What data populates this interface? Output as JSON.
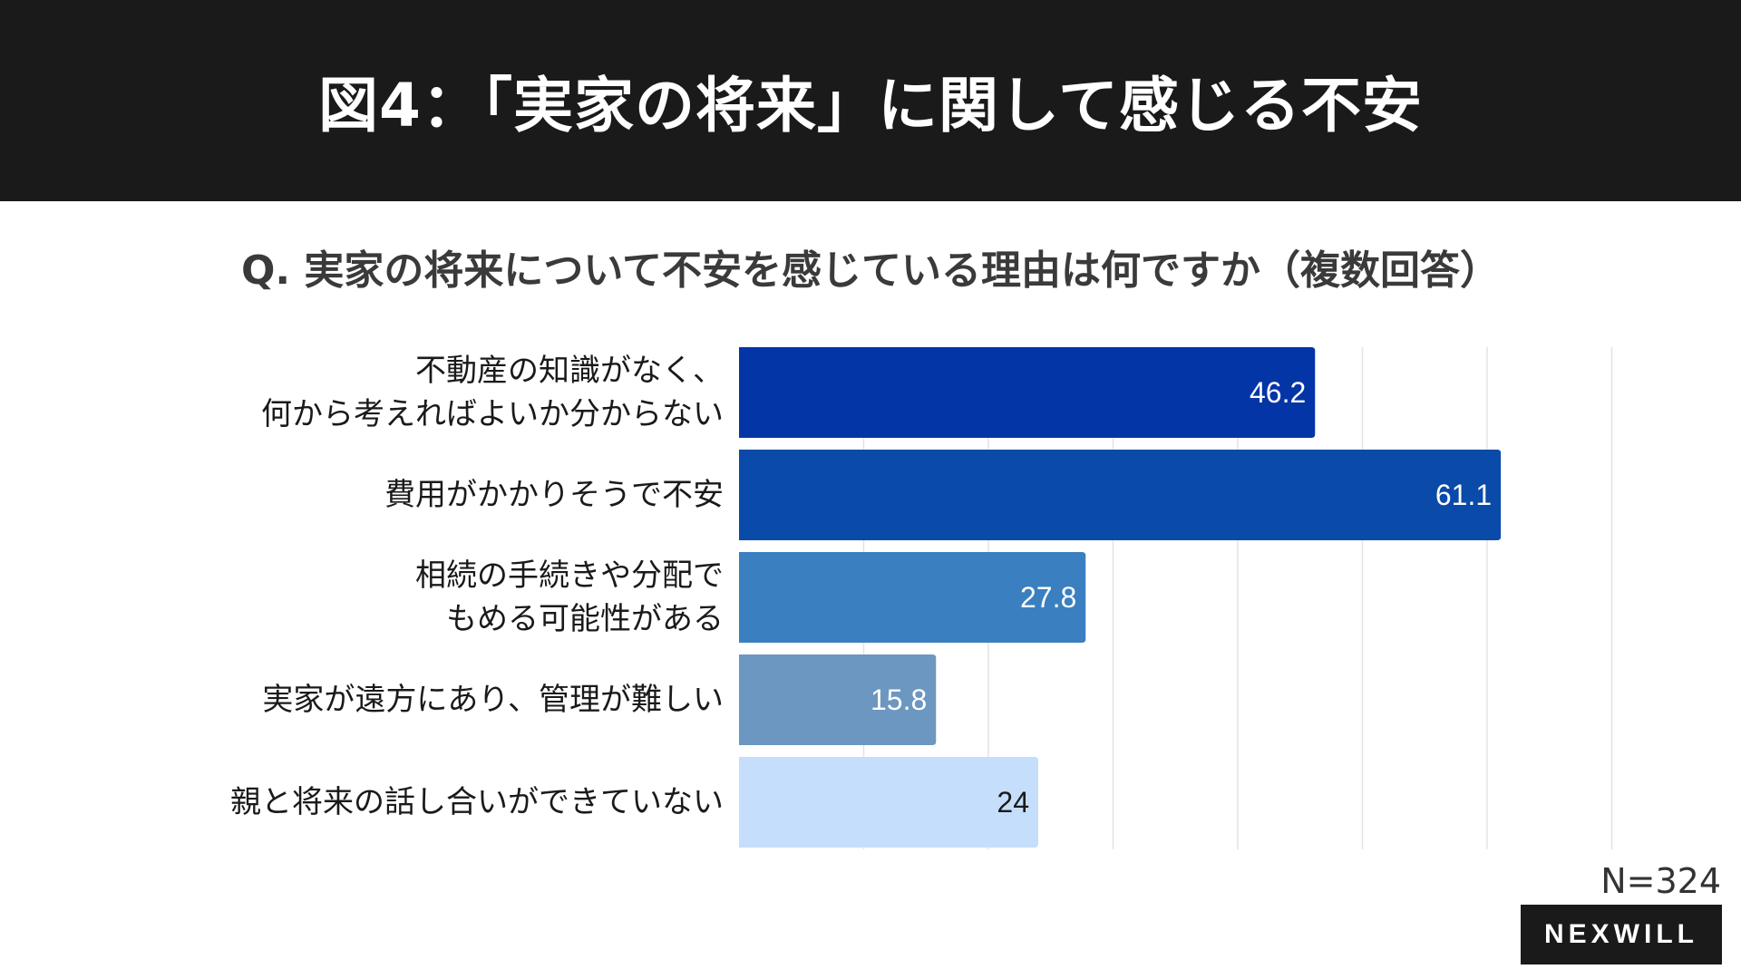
{
  "header": {
    "title": "図4：「実家の将来」に関して感じる不安"
  },
  "question": "Q. 実家の将来について不安を感じている理由は何ですか（複数回答）",
  "chart_data": {
    "type": "bar",
    "orientation": "horizontal",
    "title": "Q. 実家の将来について不安を感じている理由は何ですか（複数回答）",
    "xlabel": "",
    "ylabel": "",
    "xlim": [
      0,
      70
    ],
    "grid": true,
    "categories": [
      [
        "不動産の知識がなく、",
        "何から考えればよいか分からない"
      ],
      [
        "費用がかかりそうで不安"
      ],
      [
        "相続の手続きや分配で",
        "もめる可能性がある"
      ],
      [
        "実家が遠方にあり、管理が難しい"
      ],
      [
        "親と将来の話し合いができていない"
      ]
    ],
    "values": [
      46.2,
      61.1,
      27.8,
      15.8,
      24
    ],
    "value_labels": [
      "46.2",
      "61.1",
      "27.8",
      "15.8",
      "24"
    ],
    "colors": [
      "#0435a6",
      "#0a4aa8",
      "#3a7fc0",
      "#6c97c0",
      "#c5defc"
    ],
    "label_colors": [
      "#ffffff",
      "#ffffff",
      "#ffffff",
      "#ffffff",
      "#1a1a1a"
    ]
  },
  "footnote": "N=324",
  "logo": "NEXWILL"
}
